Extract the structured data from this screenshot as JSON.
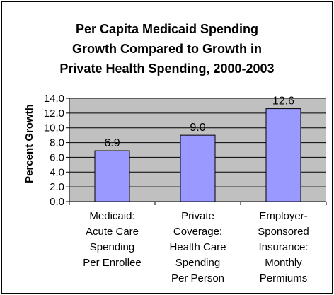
{
  "chart_data": {
    "type": "bar",
    "title_lines": [
      "Per Capita Medicaid Spending",
      "Growth Compared to Growth in",
      "Private Health Spending, 2000-2003"
    ],
    "ylabel": "Percent Growth",
    "xlabel": "",
    "ylim": [
      0,
      14
    ],
    "ytick_step": 2,
    "ytick_labels": [
      "0.0",
      "2.0",
      "4.0",
      "6.0",
      "8.0",
      "10.0",
      "12.0",
      "14.0"
    ],
    "categories": [
      [
        "Medicaid:",
        "Acute Care",
        "Spending",
        "Per Enrollee"
      ],
      [
        "Private",
        "Coverage:",
        "Health Care",
        "Spending",
        "Per Person"
      ],
      [
        "Employer-",
        "Sponsored",
        "Insurance:",
        "Monthly",
        "Permiums"
      ]
    ],
    "values": [
      6.9,
      9.0,
      12.6
    ],
    "data_labels": [
      "6.9",
      "9.0",
      "12.6"
    ],
    "grid": true,
    "colors": {
      "plot_background": "#c0c0c0",
      "bar_fill": "#9999ff",
      "bar_stroke": "#000000",
      "gridline": "#000000"
    }
  }
}
